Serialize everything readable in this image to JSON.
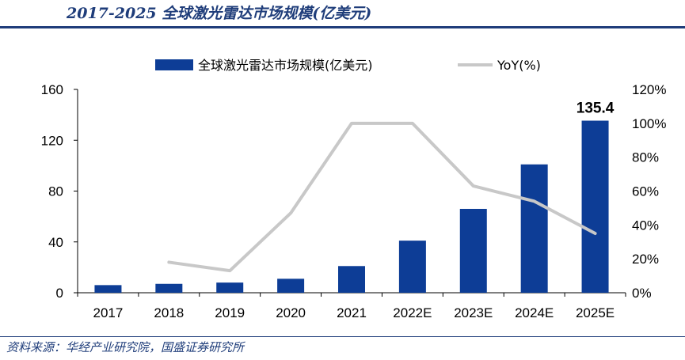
{
  "header": {
    "title": "2017-2025 全球激光雷达市场规模(亿美元)"
  },
  "footer": {
    "source": "资料来源：华经产业研究院，国盛证券研究所"
  },
  "chart_data": {
    "type": "bar",
    "categories": [
      "2017",
      "2018",
      "2019",
      "2020",
      "2021",
      "2022E",
      "2023E",
      "2024E",
      "2025E"
    ],
    "series": [
      {
        "name": "全球激光雷达市场规模(亿美元)",
        "type": "bar",
        "axis": "left",
        "color": "#0d3d96",
        "values": [
          6,
          7,
          8,
          11,
          21,
          41,
          66,
          101,
          135.4
        ]
      },
      {
        "name": "YoY(%)",
        "type": "line",
        "axis": "right",
        "color": "#c8c8c8",
        "values": [
          null,
          18,
          13,
          47,
          100,
          100,
          63,
          54,
          35
        ]
      }
    ],
    "data_labels": [
      {
        "category": "2025E",
        "text": "135.4"
      }
    ],
    "y_left": {
      "ylim": [
        0,
        160
      ],
      "ticks": [
        "0",
        "40",
        "80",
        "120",
        "160"
      ],
      "tick_values": [
        0,
        40,
        80,
        120,
        160
      ]
    },
    "y_right": {
      "ylim": [
        0,
        120
      ],
      "ticks": [
        "0%",
        "20%",
        "40%",
        "60%",
        "80%",
        "100%",
        "120%"
      ],
      "tick_values": [
        0,
        20,
        40,
        60,
        80,
        100,
        120
      ]
    },
    "grid": false,
    "legend_position": "top-center"
  }
}
